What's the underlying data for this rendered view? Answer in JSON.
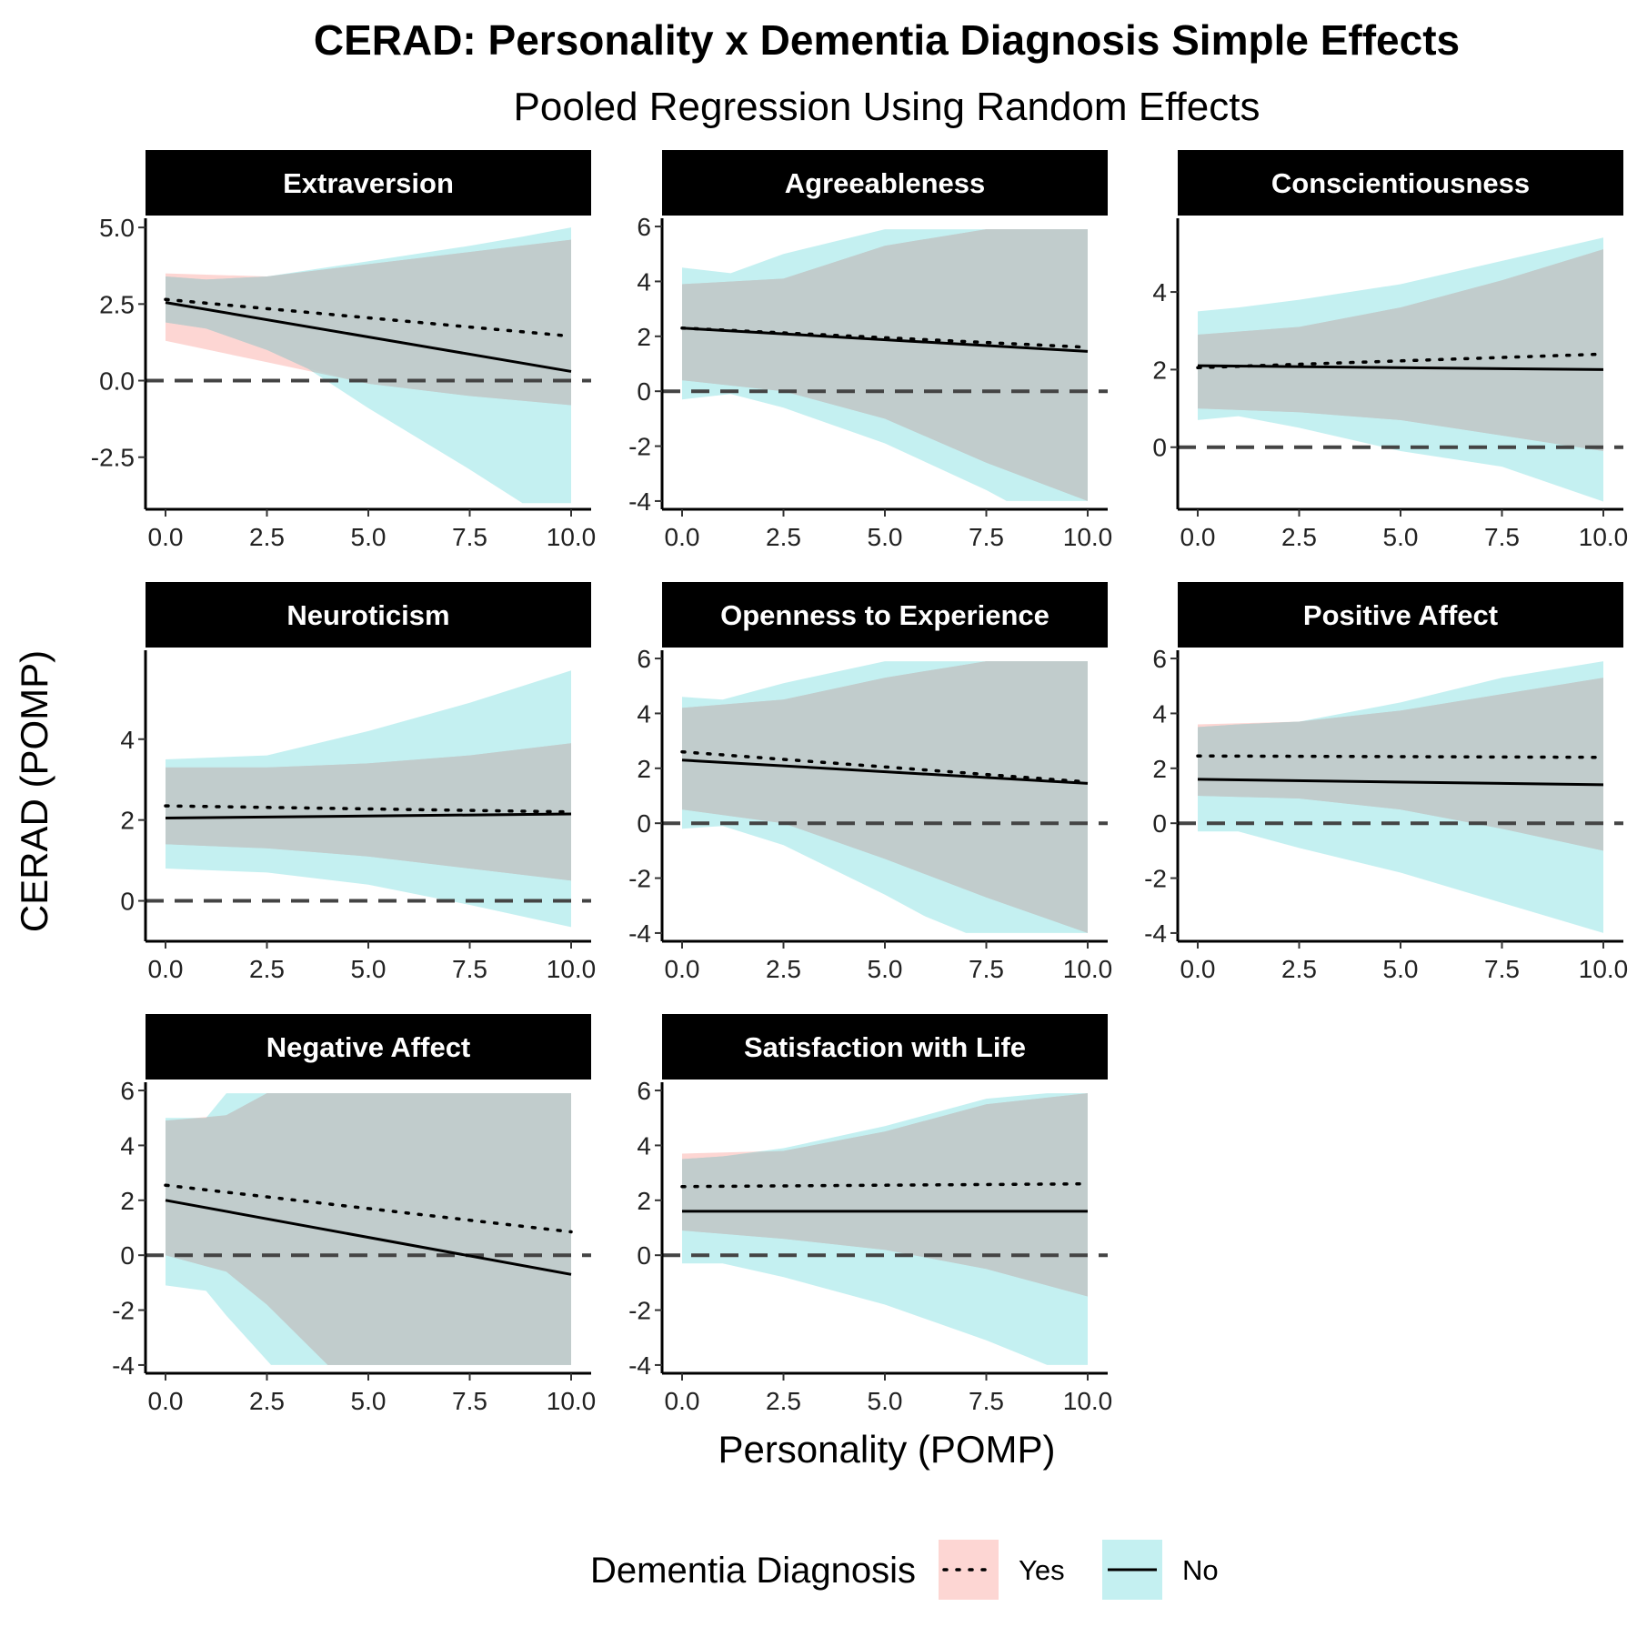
{
  "chart_data": {
    "type": "line",
    "title": "CERAD: Personality x Dementia Diagnosis Simple Effects",
    "subtitle": "Pooled Regression Using Random Effects",
    "xlabel": "Personality (POMP)",
    "ylabel": "CERAD (POMP)",
    "legend": {
      "title": "Dementia Diagnosis",
      "position": "bottom",
      "entries": [
        {
          "label": "Yes",
          "linetype": "dotted",
          "fill": "#F8766D"
        },
        {
          "label": "No",
          "linetype": "solid",
          "fill": "#00BFC4"
        }
      ]
    },
    "colors": {
      "yes_band": "#F8766D",
      "no_band": "#00BFC4",
      "overlap_band": "#C1CCCC",
      "strip": "#000000",
      "reference_line": "#444444"
    },
    "reference_line_y": 0,
    "xlim": [
      0,
      10
    ],
    "x_ticks": [
      "0.0",
      "2.5",
      "5.0",
      "7.5",
      "10.0"
    ],
    "grid": false,
    "panels": [
      {
        "name": "Extraversion",
        "ylim": [
          -4.2,
          5.3
        ],
        "y_ticks": [
          {
            "v": 5,
            "label": "5.0"
          },
          {
            "v": 2.5,
            "label": "2.5"
          },
          {
            "v": 0,
            "label": "0.0"
          },
          {
            "v": -2.5,
            "label": "-2.5"
          }
        ],
        "yes_line": [
          2.65,
          1.45
        ],
        "no_line": [
          2.55,
          0.3
        ],
        "yes_band": {
          "x": [
            0,
            2.5,
            5,
            7.5,
            10
          ],
          "lower": [
            1.3,
            0.6,
            -0.1,
            -0.5,
            -0.8
          ],
          "upper": [
            3.5,
            3.4,
            3.8,
            4.2,
            4.6
          ]
        },
        "no_band": {
          "x": [
            0,
            1,
            2.5,
            3.5,
            5,
            7.5,
            8.8,
            10
          ],
          "lower": [
            1.9,
            1.7,
            1.0,
            0.4,
            -0.9,
            -2.9,
            -4.0,
            -4.0
          ],
          "upper": [
            3.4,
            3.3,
            3.4,
            3.6,
            3.9,
            4.4,
            4.7,
            5.0
          ]
        }
      },
      {
        "name": "Agreeableness",
        "ylim": [
          -4.3,
          6.3
        ],
        "y_ticks": [
          {
            "v": 6,
            "label": "6"
          },
          {
            "v": 4,
            "label": "4"
          },
          {
            "v": 2,
            "label": "2"
          },
          {
            "v": 0,
            "label": "0"
          },
          {
            "v": -2,
            "label": "-2"
          },
          {
            "v": -4,
            "label": "-4"
          }
        ],
        "yes_line": [
          2.3,
          1.6
        ],
        "no_line": [
          2.3,
          1.45
        ],
        "yes_band": {
          "x": [
            0,
            2.5,
            5,
            7.5,
            10
          ],
          "lower": [
            0.4,
            0.0,
            -1.0,
            -2.6,
            -4.0
          ],
          "upper": [
            3.9,
            4.1,
            5.3,
            5.9,
            5.9
          ]
        },
        "no_band": {
          "x": [
            0,
            1.2,
            2.5,
            5,
            7.5,
            8,
            10
          ],
          "lower": [
            -0.3,
            -0.1,
            -0.6,
            -1.9,
            -3.6,
            -4.0,
            -4.0
          ],
          "upper": [
            4.5,
            4.3,
            5.0,
            5.9,
            5.9,
            5.9,
            5.9
          ]
        }
      },
      {
        "name": "Conscientiousness",
        "ylim": [
          -1.6,
          5.9
        ],
        "y_ticks": [
          {
            "v": 4,
            "label": "4"
          },
          {
            "v": 2,
            "label": "2"
          },
          {
            "v": 0,
            "label": "0"
          }
        ],
        "yes_line": [
          2.05,
          2.4
        ],
        "no_line": [
          2.1,
          2.0
        ],
        "yes_band": {
          "x": [
            0,
            2.5,
            5,
            7.5,
            10
          ],
          "lower": [
            1.0,
            0.9,
            0.7,
            0.3,
            -0.1
          ],
          "upper": [
            2.9,
            3.1,
            3.6,
            4.3,
            5.1
          ]
        },
        "no_band": {
          "x": [
            0,
            1,
            2.5,
            5,
            7.5,
            10
          ],
          "lower": [
            0.7,
            0.8,
            0.5,
            -0.1,
            -0.5,
            -1.4
          ],
          "upper": [
            3.5,
            3.6,
            3.8,
            4.2,
            4.8,
            5.4
          ]
        }
      },
      {
        "name": "Neuroticism",
        "ylim": [
          -1.0,
          6.2
        ],
        "y_ticks": [
          {
            "v": 4,
            "label": "4"
          },
          {
            "v": 2,
            "label": "2"
          },
          {
            "v": 0,
            "label": "0"
          }
        ],
        "yes_line": [
          2.35,
          2.2
        ],
        "no_line": [
          2.05,
          2.15
        ],
        "yes_band": {
          "x": [
            0,
            2.5,
            5,
            7.5,
            10
          ],
          "lower": [
            1.4,
            1.3,
            1.1,
            0.8,
            0.5
          ],
          "upper": [
            3.3,
            3.3,
            3.4,
            3.6,
            3.9
          ]
        },
        "no_band": {
          "x": [
            0,
            2.5,
            5,
            7.5,
            10
          ],
          "lower": [
            0.8,
            0.7,
            0.4,
            -0.1,
            -0.65
          ],
          "upper": [
            3.5,
            3.6,
            4.2,
            4.9,
            5.7
          ]
        }
      },
      {
        "name": "Openness to Experience",
        "ylim": [
          -4.3,
          6.3
        ],
        "y_ticks": [
          {
            "v": 6,
            "label": "6"
          },
          {
            "v": 4,
            "label": "4"
          },
          {
            "v": 2,
            "label": "2"
          },
          {
            "v": 0,
            "label": "0"
          },
          {
            "v": -2,
            "label": "-2"
          },
          {
            "v": -4,
            "label": "-4"
          }
        ],
        "yes_line": [
          2.6,
          1.5
        ],
        "no_line": [
          2.3,
          1.45
        ],
        "yes_band": {
          "x": [
            0,
            2.5,
            5,
            7.5,
            10
          ],
          "lower": [
            0.5,
            0.0,
            -1.3,
            -2.7,
            -4.0
          ],
          "upper": [
            4.2,
            4.5,
            5.3,
            5.9,
            5.9
          ]
        },
        "no_band": {
          "x": [
            0,
            1,
            2.5,
            5,
            6,
            7,
            10
          ],
          "lower": [
            -0.2,
            -0.1,
            -0.8,
            -2.6,
            -3.4,
            -4.0,
            -4.0
          ],
          "upper": [
            4.6,
            4.5,
            5.1,
            5.9,
            5.9,
            5.9,
            5.9
          ]
        }
      },
      {
        "name": "Positive Affect",
        "ylim": [
          -4.3,
          6.3
        ],
        "y_ticks": [
          {
            "v": 6,
            "label": "6"
          },
          {
            "v": 4,
            "label": "4"
          },
          {
            "v": 2,
            "label": "2"
          },
          {
            "v": 0,
            "label": "0"
          },
          {
            "v": -2,
            "label": "-2"
          },
          {
            "v": -4,
            "label": "-4"
          }
        ],
        "yes_line": [
          2.45,
          2.4
        ],
        "no_line": [
          1.6,
          1.4
        ],
        "yes_band": {
          "x": [
            0,
            2.5,
            5,
            7.5,
            10
          ],
          "lower": [
            1.0,
            0.9,
            0.5,
            -0.2,
            -1.0
          ],
          "upper": [
            3.6,
            3.7,
            4.1,
            4.7,
            5.3
          ]
        },
        "no_band": {
          "x": [
            0,
            1,
            2.5,
            5,
            7.5,
            10
          ],
          "lower": [
            -0.3,
            -0.3,
            -0.9,
            -1.8,
            -2.9,
            -4.0
          ],
          "upper": [
            3.5,
            3.6,
            3.7,
            4.4,
            5.3,
            5.9
          ]
        }
      },
      {
        "name": "Negative Affect",
        "ylim": [
          -4.3,
          6.3
        ],
        "y_ticks": [
          {
            "v": 6,
            "label": "6"
          },
          {
            "v": 4,
            "label": "4"
          },
          {
            "v": 2,
            "label": "2"
          },
          {
            "v": 0,
            "label": "0"
          },
          {
            "v": -2,
            "label": "-2"
          },
          {
            "v": -4,
            "label": "-4"
          }
        ],
        "yes_line": [
          2.55,
          0.85
        ],
        "no_line": [
          2.0,
          -0.7
        ],
        "yes_band": {
          "x": [
            0,
            1.5,
            2.5,
            4,
            10
          ],
          "lower": [
            0.0,
            -0.6,
            -1.8,
            -4.0,
            -4.0
          ],
          "upper": [
            4.9,
            5.1,
            5.9,
            5.9,
            5.9
          ]
        },
        "no_band": {
          "x": [
            0,
            1,
            1.5,
            2.6,
            10
          ],
          "lower": [
            -1.1,
            -1.3,
            -2.2,
            -4.0,
            -4.0
          ],
          "upper": [
            5.0,
            5.0,
            5.9,
            5.9,
            5.9
          ]
        }
      },
      {
        "name": "Satisfaction with Life",
        "ylim": [
          -4.3,
          6.3
        ],
        "y_ticks": [
          {
            "v": 6,
            "label": "6"
          },
          {
            "v": 4,
            "label": "4"
          },
          {
            "v": 2,
            "label": "2"
          },
          {
            "v": 0,
            "label": "0"
          },
          {
            "v": -2,
            "label": "-2"
          },
          {
            "v": -4,
            "label": "-4"
          }
        ],
        "yes_line": [
          2.5,
          2.6
        ],
        "no_line": [
          1.6,
          1.6
        ],
        "yes_band": {
          "x": [
            0,
            2.5,
            5,
            7.5,
            10
          ],
          "lower": [
            0.9,
            0.6,
            0.2,
            -0.5,
            -1.5
          ],
          "upper": [
            3.7,
            3.8,
            4.5,
            5.5,
            5.9
          ]
        },
        "no_band": {
          "x": [
            0,
            1,
            2.5,
            5,
            7.5,
            9,
            10
          ],
          "lower": [
            -0.3,
            -0.3,
            -0.8,
            -1.8,
            -3.1,
            -4.0,
            -4.0
          ],
          "upper": [
            3.5,
            3.6,
            3.9,
            4.7,
            5.7,
            5.9,
            5.9
          ]
        }
      }
    ]
  }
}
